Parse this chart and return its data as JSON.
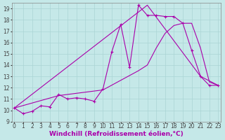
{
  "xlabel": "Windchill (Refroidissement éolien,°C)",
  "bg_color": "#c5e8e8",
  "grid_color": "#aad4d4",
  "line_color": "#aa00aa",
  "xticks": [
    0,
    1,
    2,
    3,
    4,
    5,
    6,
    7,
    8,
    9,
    10,
    11,
    12,
    13,
    14,
    15,
    16,
    17,
    18,
    19,
    20,
    21,
    22,
    23
  ],
  "yticks": [
    9,
    10,
    11,
    12,
    13,
    14,
    15,
    16,
    17,
    18,
    19
  ],
  "line1_x": [
    0,
    1,
    2,
    3,
    4,
    5,
    6,
    7,
    8,
    9,
    10,
    11,
    12,
    13,
    14,
    15,
    16,
    17,
    18,
    19,
    20,
    21,
    22,
    23
  ],
  "line1_y": [
    10.2,
    9.7,
    9.9,
    10.4,
    10.3,
    11.4,
    11.0,
    11.1,
    11.0,
    10.8,
    11.9,
    15.2,
    17.6,
    13.8,
    19.3,
    18.4,
    18.4,
    18.3,
    18.3,
    17.7,
    15.3,
    13.0,
    12.2,
    12.2
  ],
  "line2_x": [
    0,
    15,
    21,
    23
  ],
  "line2_y": [
    10.2,
    19.3,
    13.0,
    12.2
  ],
  "line3_x": [
    0,
    5,
    10,
    14,
    15,
    16,
    17,
    18,
    19,
    20,
    21,
    22,
    23
  ],
  "line3_y": [
    10.2,
    11.3,
    11.8,
    13.5,
    14.0,
    15.5,
    16.8,
    17.5,
    17.7,
    17.7,
    15.5,
    12.5,
    12.2
  ],
  "font_size": 6.5,
  "tick_font_size": 5.5,
  "xlabel_color": "#aa00aa"
}
